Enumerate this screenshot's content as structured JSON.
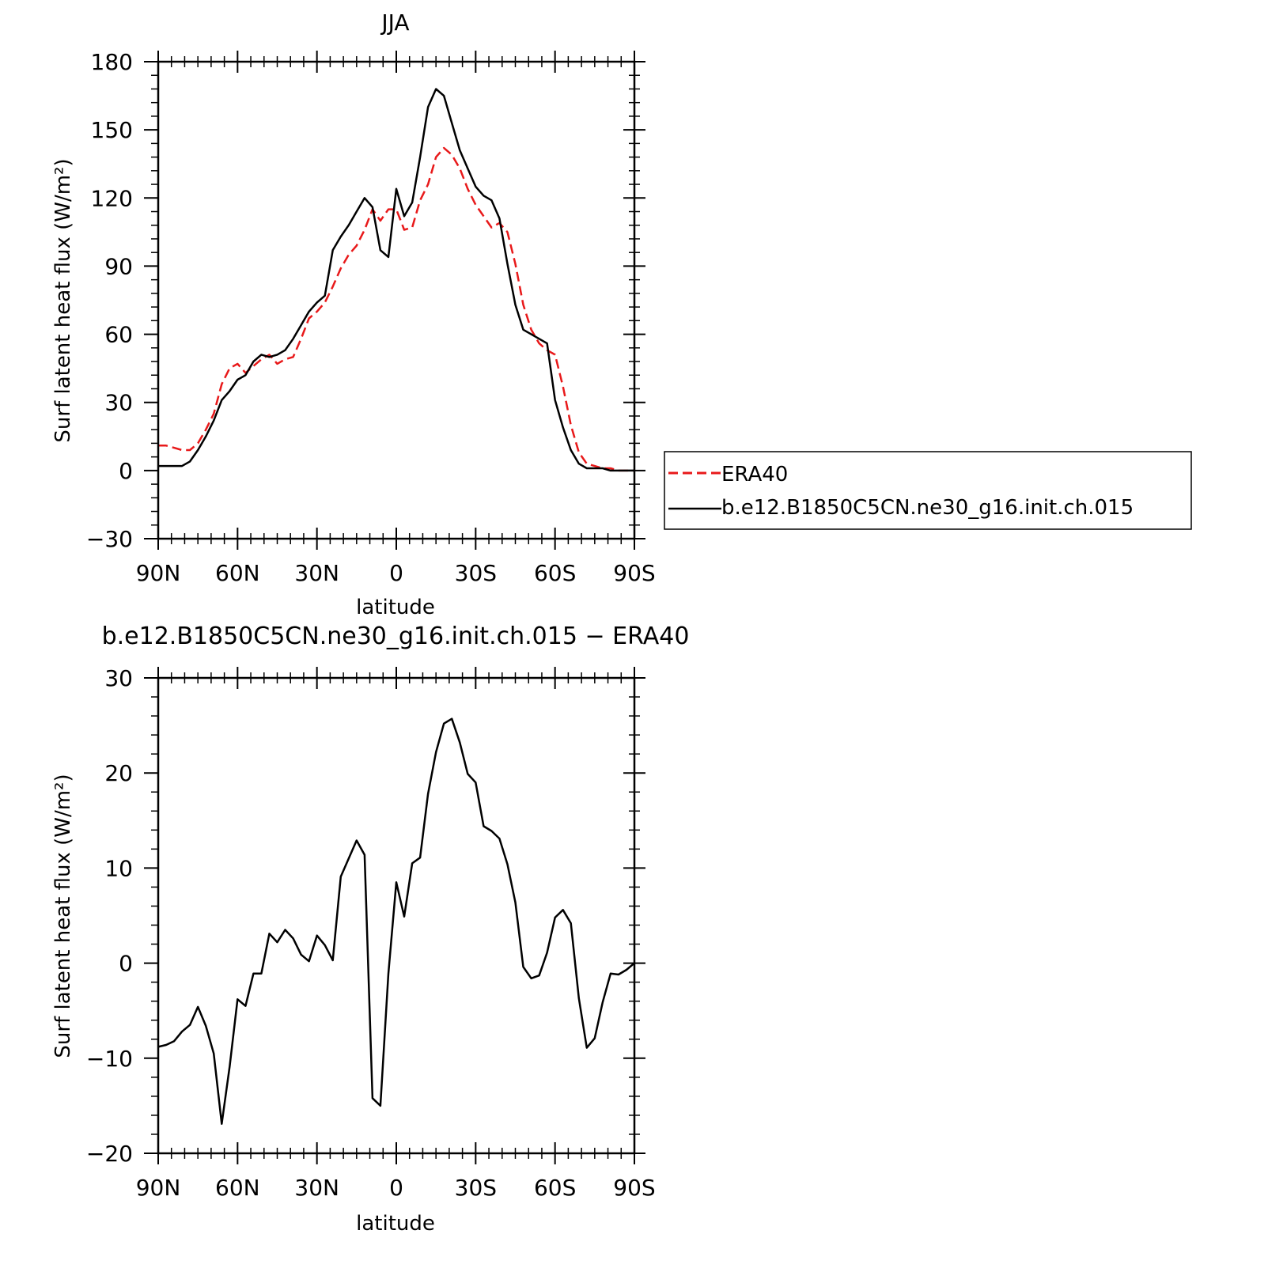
{
  "chart_data": [
    {
      "type": "line",
      "title": "JJA",
      "xlabel": "latitude",
      "ylabel": "Surf latent heat flux (W/m²)",
      "xlim": [
        90,
        -90
      ],
      "ylim": [
        -30,
        180
      ],
      "x_ticks": [
        90,
        60,
        30,
        0,
        -30,
        -60,
        -90
      ],
      "x_tick_labels": [
        "90N",
        "60N",
        "30N",
        "0",
        "30S",
        "60S",
        "90S"
      ],
      "y_ticks": [
        -30,
        0,
        30,
        60,
        90,
        120,
        150,
        180
      ],
      "y_tick_labels": [
        "−30",
        "0",
        "30",
        "60",
        "90",
        "120",
        "150",
        "180"
      ],
      "legend": "right",
      "series": [
        {
          "name": "ERA40",
          "color": "#e8191a",
          "style": "dashed",
          "x": [
            90,
            87,
            84,
            81,
            78,
            75,
            72,
            69,
            66,
            63,
            60,
            57,
            54,
            51,
            48,
            45,
            42,
            39,
            36,
            33,
            30,
            27,
            24,
            21,
            18,
            15,
            12,
            9,
            6,
            3,
            0,
            -3,
            -6,
            -9,
            -12,
            -15,
            -18,
            -21,
            -24,
            -27,
            -30,
            -33,
            -36,
            -39,
            -42,
            -45,
            -48,
            -51,
            -54,
            -57,
            -60,
            -63,
            -66,
            -69,
            -72,
            -75,
            -78,
            -81,
            -84,
            -87,
            -90
          ],
          "y": [
            11,
            11,
            10,
            9,
            9,
            12,
            18,
            25,
            38,
            45,
            47,
            43,
            46,
            49,
            51,
            47,
            49,
            50,
            58,
            67,
            70,
            74,
            81,
            89,
            95,
            99,
            106,
            115,
            110,
            115,
            115,
            106,
            107,
            119,
            126,
            138,
            142,
            139,
            133,
            124,
            117,
            112,
            107,
            109,
            105,
            91,
            73,
            62,
            56,
            53,
            51,
            37,
            20,
            8,
            3,
            2,
            1,
            1,
            0,
            0,
            0
          ]
        },
        {
          "name": "b.e12.B1850C5CN.ne30_g16.init.ch.015",
          "color": "#000000",
          "style": "solid",
          "x": [
            90,
            87,
            84,
            81,
            78,
            75,
            72,
            69,
            66,
            63,
            60,
            57,
            54,
            51,
            48,
            45,
            42,
            39,
            36,
            33,
            30,
            27,
            24,
            21,
            18,
            15,
            12,
            9,
            6,
            3,
            0,
            -3,
            -6,
            -9,
            -12,
            -15,
            -18,
            -21,
            -24,
            -27,
            -30,
            -33,
            -36,
            -39,
            -42,
            -45,
            -48,
            -51,
            -54,
            -57,
            -60,
            -63,
            -66,
            -69,
            -72,
            -75,
            -78,
            -81,
            -84,
            -87,
            -90
          ],
          "y": [
            2,
            2,
            2,
            2,
            4,
            9,
            15,
            22,
            31,
            35,
            40,
            42,
            48,
            51,
            50,
            51,
            53,
            58,
            64,
            70,
            74,
            77,
            97,
            103,
            108,
            114,
            120,
            116,
            97,
            94,
            124,
            112,
            118,
            138,
            160,
            168,
            165,
            153,
            141,
            133,
            125,
            121,
            119,
            111,
            91,
            73,
            62,
            60,
            58,
            56,
            31,
            19,
            9,
            3,
            1,
            1,
            1,
            0,
            0,
            0,
            0
          ]
        }
      ]
    },
    {
      "type": "line",
      "title": "b.e12.B1850C5CN.ne30_g16.init.ch.015 − ERA40",
      "xlabel": "latitude",
      "ylabel": "Surf latent heat flux (W/m²)",
      "xlim": [
        90,
        -90
      ],
      "ylim": [
        -20,
        30
      ],
      "x_ticks": [
        90,
        60,
        30,
        0,
        -30,
        -60,
        -90
      ],
      "x_tick_labels": [
        "90N",
        "60N",
        "30N",
        "0",
        "30S",
        "60S",
        "90S"
      ],
      "y_ticks": [
        -20,
        -10,
        0,
        10,
        20,
        30
      ],
      "y_tick_labels": [
        "−20",
        "−10",
        "0",
        "10",
        "20",
        "30"
      ],
      "series": [
        {
          "color": "#000000",
          "style": "solid",
          "x": [
            90,
            87,
            84,
            81,
            78,
            75,
            72,
            69,
            66,
            63,
            60,
            57,
            54,
            51,
            48,
            45,
            42,
            39,
            36,
            33,
            30,
            27,
            24,
            21,
            18,
            15,
            12,
            9,
            6,
            3,
            0,
            -3,
            -6,
            -9,
            -12,
            -15,
            -18,
            -21,
            -24,
            -27,
            -30,
            -33,
            -36,
            -39,
            -42,
            -45,
            -48,
            -51,
            -54,
            -57,
            -60,
            -63,
            -66,
            -69,
            -72,
            -75,
            -78,
            -81,
            -84,
            -87,
            -90
          ],
          "y": [
            -8.8,
            -8.6,
            -8.2,
            -7.2,
            -6.5,
            -4.6,
            -6.6,
            -9.5,
            -16.9,
            -10.9,
            -3.8,
            -4.5,
            -1.1,
            -1.1,
            3.1,
            2.2,
            3.5,
            2.6,
            0.9,
            0.2,
            2.9,
            1.9,
            0.3,
            9.1,
            11,
            12.9,
            11.4,
            -14.2,
            -15,
            -1.1,
            8.5,
            4.9,
            10.5,
            11.1,
            17.8,
            22.2,
            25.2,
            25.7,
            23.2,
            19.9,
            19,
            14.4,
            13.9,
            13.1,
            10.4,
            6.4,
            -0.4,
            -1.6,
            -1.3,
            1.1,
            4.8,
            5.6,
            4.2,
            -3.7,
            -8.9,
            -7.9,
            -4.1,
            -1.1,
            -1.2,
            -0.7,
            0
          ]
        }
      ]
    }
  ]
}
